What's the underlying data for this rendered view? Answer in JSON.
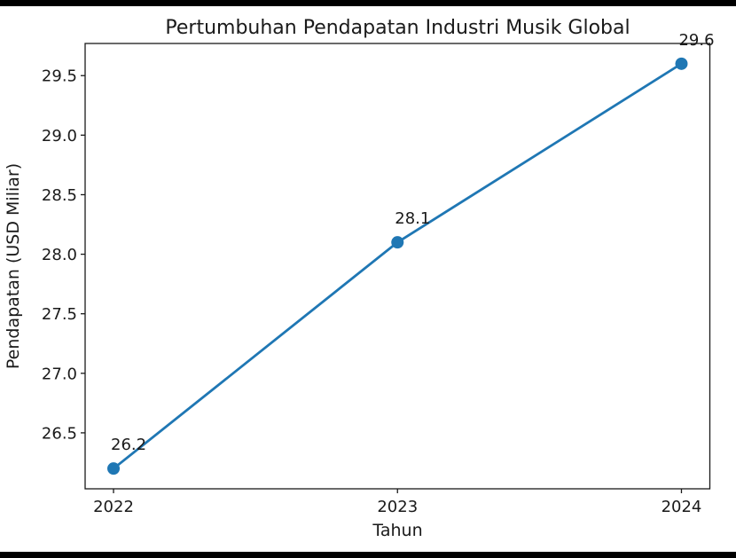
{
  "page": {
    "background": "#ffffff",
    "bar_color": "#000000"
  },
  "chart_data": {
    "type": "line",
    "title": "Pertumbuhan Pendapatan Industri Musik Global",
    "xlabel": "Tahun",
    "ylabel": "Pendapatan (USD Miliar)",
    "x": [
      2022,
      2023,
      2024
    ],
    "values": [
      26.2,
      28.1,
      29.6
    ],
    "point_labels": [
      "26.2",
      "28.1",
      "29.6"
    ],
    "xtick_labels": [
      "2022",
      "2023",
      "2024"
    ],
    "xticks": [
      2022,
      2023,
      2024
    ],
    "ytick_labels": [
      "26.5",
      "27.0",
      "27.5",
      "28.0",
      "28.5",
      "29.0",
      "29.5"
    ],
    "yticks": [
      26.5,
      27.0,
      27.5,
      28.0,
      28.5,
      29.0,
      29.5
    ],
    "xlim": [
      2021.9,
      2024.1
    ],
    "ylim": [
      26.03,
      29.77
    ],
    "grid": false,
    "legend": "none",
    "line_color": "#1f77b4",
    "marker_color": "#1f77b4",
    "text_color": "#1a1a1a",
    "frame_color": "#1a1a1a"
  }
}
